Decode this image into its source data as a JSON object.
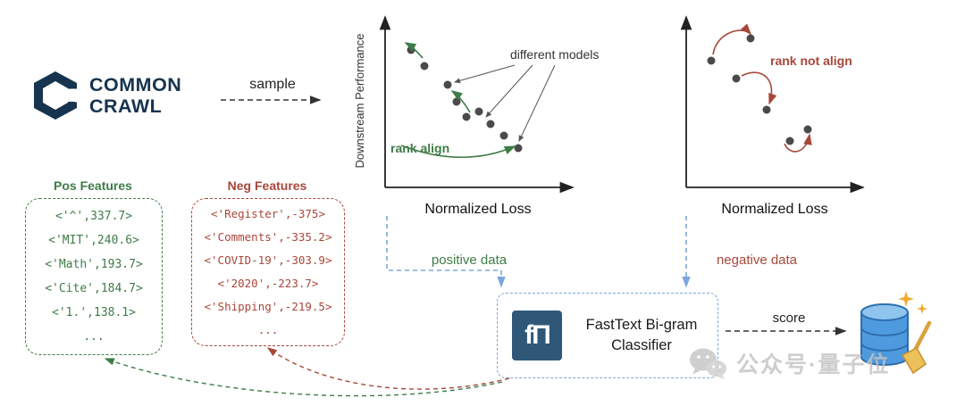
{
  "logo": {
    "line1": "COMMON",
    "line2": "CRAWL"
  },
  "flow": {
    "sample": "sample",
    "positive": "positive data",
    "negative": "negative data",
    "score": "score"
  },
  "charts": {
    "left": {
      "ylabel": "Downstream Performance",
      "xlabel": "Normalized Loss",
      "annotation": "different models",
      "rank_label": "rank align",
      "points": [
        [
          67,
          53
        ],
        [
          82,
          71
        ],
        [
          108,
          92
        ],
        [
          118,
          111
        ],
        [
          129,
          128
        ],
        [
          143,
          122
        ],
        [
          156,
          136
        ],
        [
          171,
          149
        ],
        [
          187,
          163
        ]
      ]
    },
    "right": {
      "xlabel": "Normalized Loss",
      "rank_label": "rank not align",
      "points": [
        [
          46,
          65
        ],
        [
          90,
          40
        ],
        [
          74,
          85
        ],
        [
          108,
          120
        ],
        [
          134,
          155
        ],
        [
          154,
          142
        ]
      ]
    }
  },
  "features": {
    "pos": {
      "title": "Pos Features",
      "items": [
        "<'^',337.7>",
        "<'MIT',240.6>",
        "<'Math',193.7>",
        "<'Cite',184.7>",
        "<'1.',138.1>",
        "..."
      ]
    },
    "neg": {
      "title": "Neg Features",
      "items": [
        "<'Register',-375>",
        "<'Comments',-335.2>",
        "<'COVID-19',-303.9>",
        "<'2020',-223.7>",
        "<'Shipping',-219.5>",
        "..."
      ]
    }
  },
  "classifier": {
    "logo_glyph": "fΠ",
    "line1": "FastText Bi-gram",
    "line2": "Classifier"
  },
  "watermark": {
    "text": "公众号·量子位"
  },
  "colors": {
    "green": "#3e7c47",
    "red": "#a8473a",
    "blue": "#7aa7dc",
    "navy": "#16344f",
    "dot": "#4a4a4a"
  }
}
